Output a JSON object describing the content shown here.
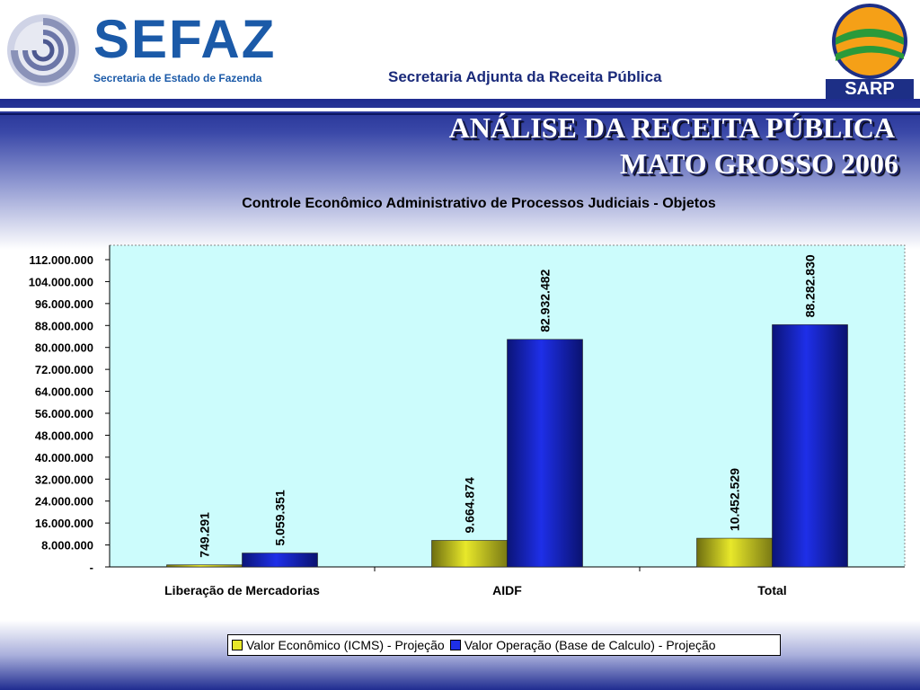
{
  "header": {
    "brand": "SEFAZ",
    "brand_subtitle": "Secretaria de Estado de Fazenda",
    "unit": "Secretaria Adjunta da Receita Pública",
    "sarp_label": "SARP"
  },
  "page_title": {
    "line1": "ANÁLISE DA RECEITA PÚBLICA",
    "line2": "MATO GROSSO 2006"
  },
  "colors": {
    "plot_background": "#ccfcfc",
    "series1": "#e8e82a",
    "series2": "#1e2fe8",
    "brand_blue": "#1b5aa8"
  },
  "chart_data": {
    "type": "bar",
    "title": "Controle Econômico Administrativo de Processos Judiciais - Objetos",
    "categories": [
      "Liberação de Mercadorias",
      "AIDF",
      "Total"
    ],
    "series": [
      {
        "name": "Valor Econômico (ICMS) - Projeção",
        "values": [
          749291,
          9664874,
          10452529
        ],
        "labels": [
          "749.291",
          "9.664.874",
          "10.452.529"
        ]
      },
      {
        "name": "Valor Operação (Base de Calculo) - Projeção",
        "values": [
          5059351,
          82932482,
          88282830
        ],
        "labels": [
          "5.059.351",
          "82.932.482",
          "88.282.830"
        ]
      }
    ],
    "ylim": [
      0,
      112000000
    ],
    "yticks": [
      0,
      8000000,
      16000000,
      24000000,
      32000000,
      40000000,
      48000000,
      56000000,
      64000000,
      72000000,
      80000000,
      88000000,
      96000000,
      104000000,
      112000000
    ],
    "ytick_labels": [
      "-",
      "8.000.000",
      "16.000.000",
      "24.000.000",
      "32.000.000",
      "40.000.000",
      "48.000.000",
      "56.000.000",
      "64.000.000",
      "72.000.000",
      "80.000.000",
      "88.000.000",
      "96.000.000",
      "104.000.000",
      "112.000.000"
    ],
    "legend_position": "bottom",
    "grid": false
  }
}
